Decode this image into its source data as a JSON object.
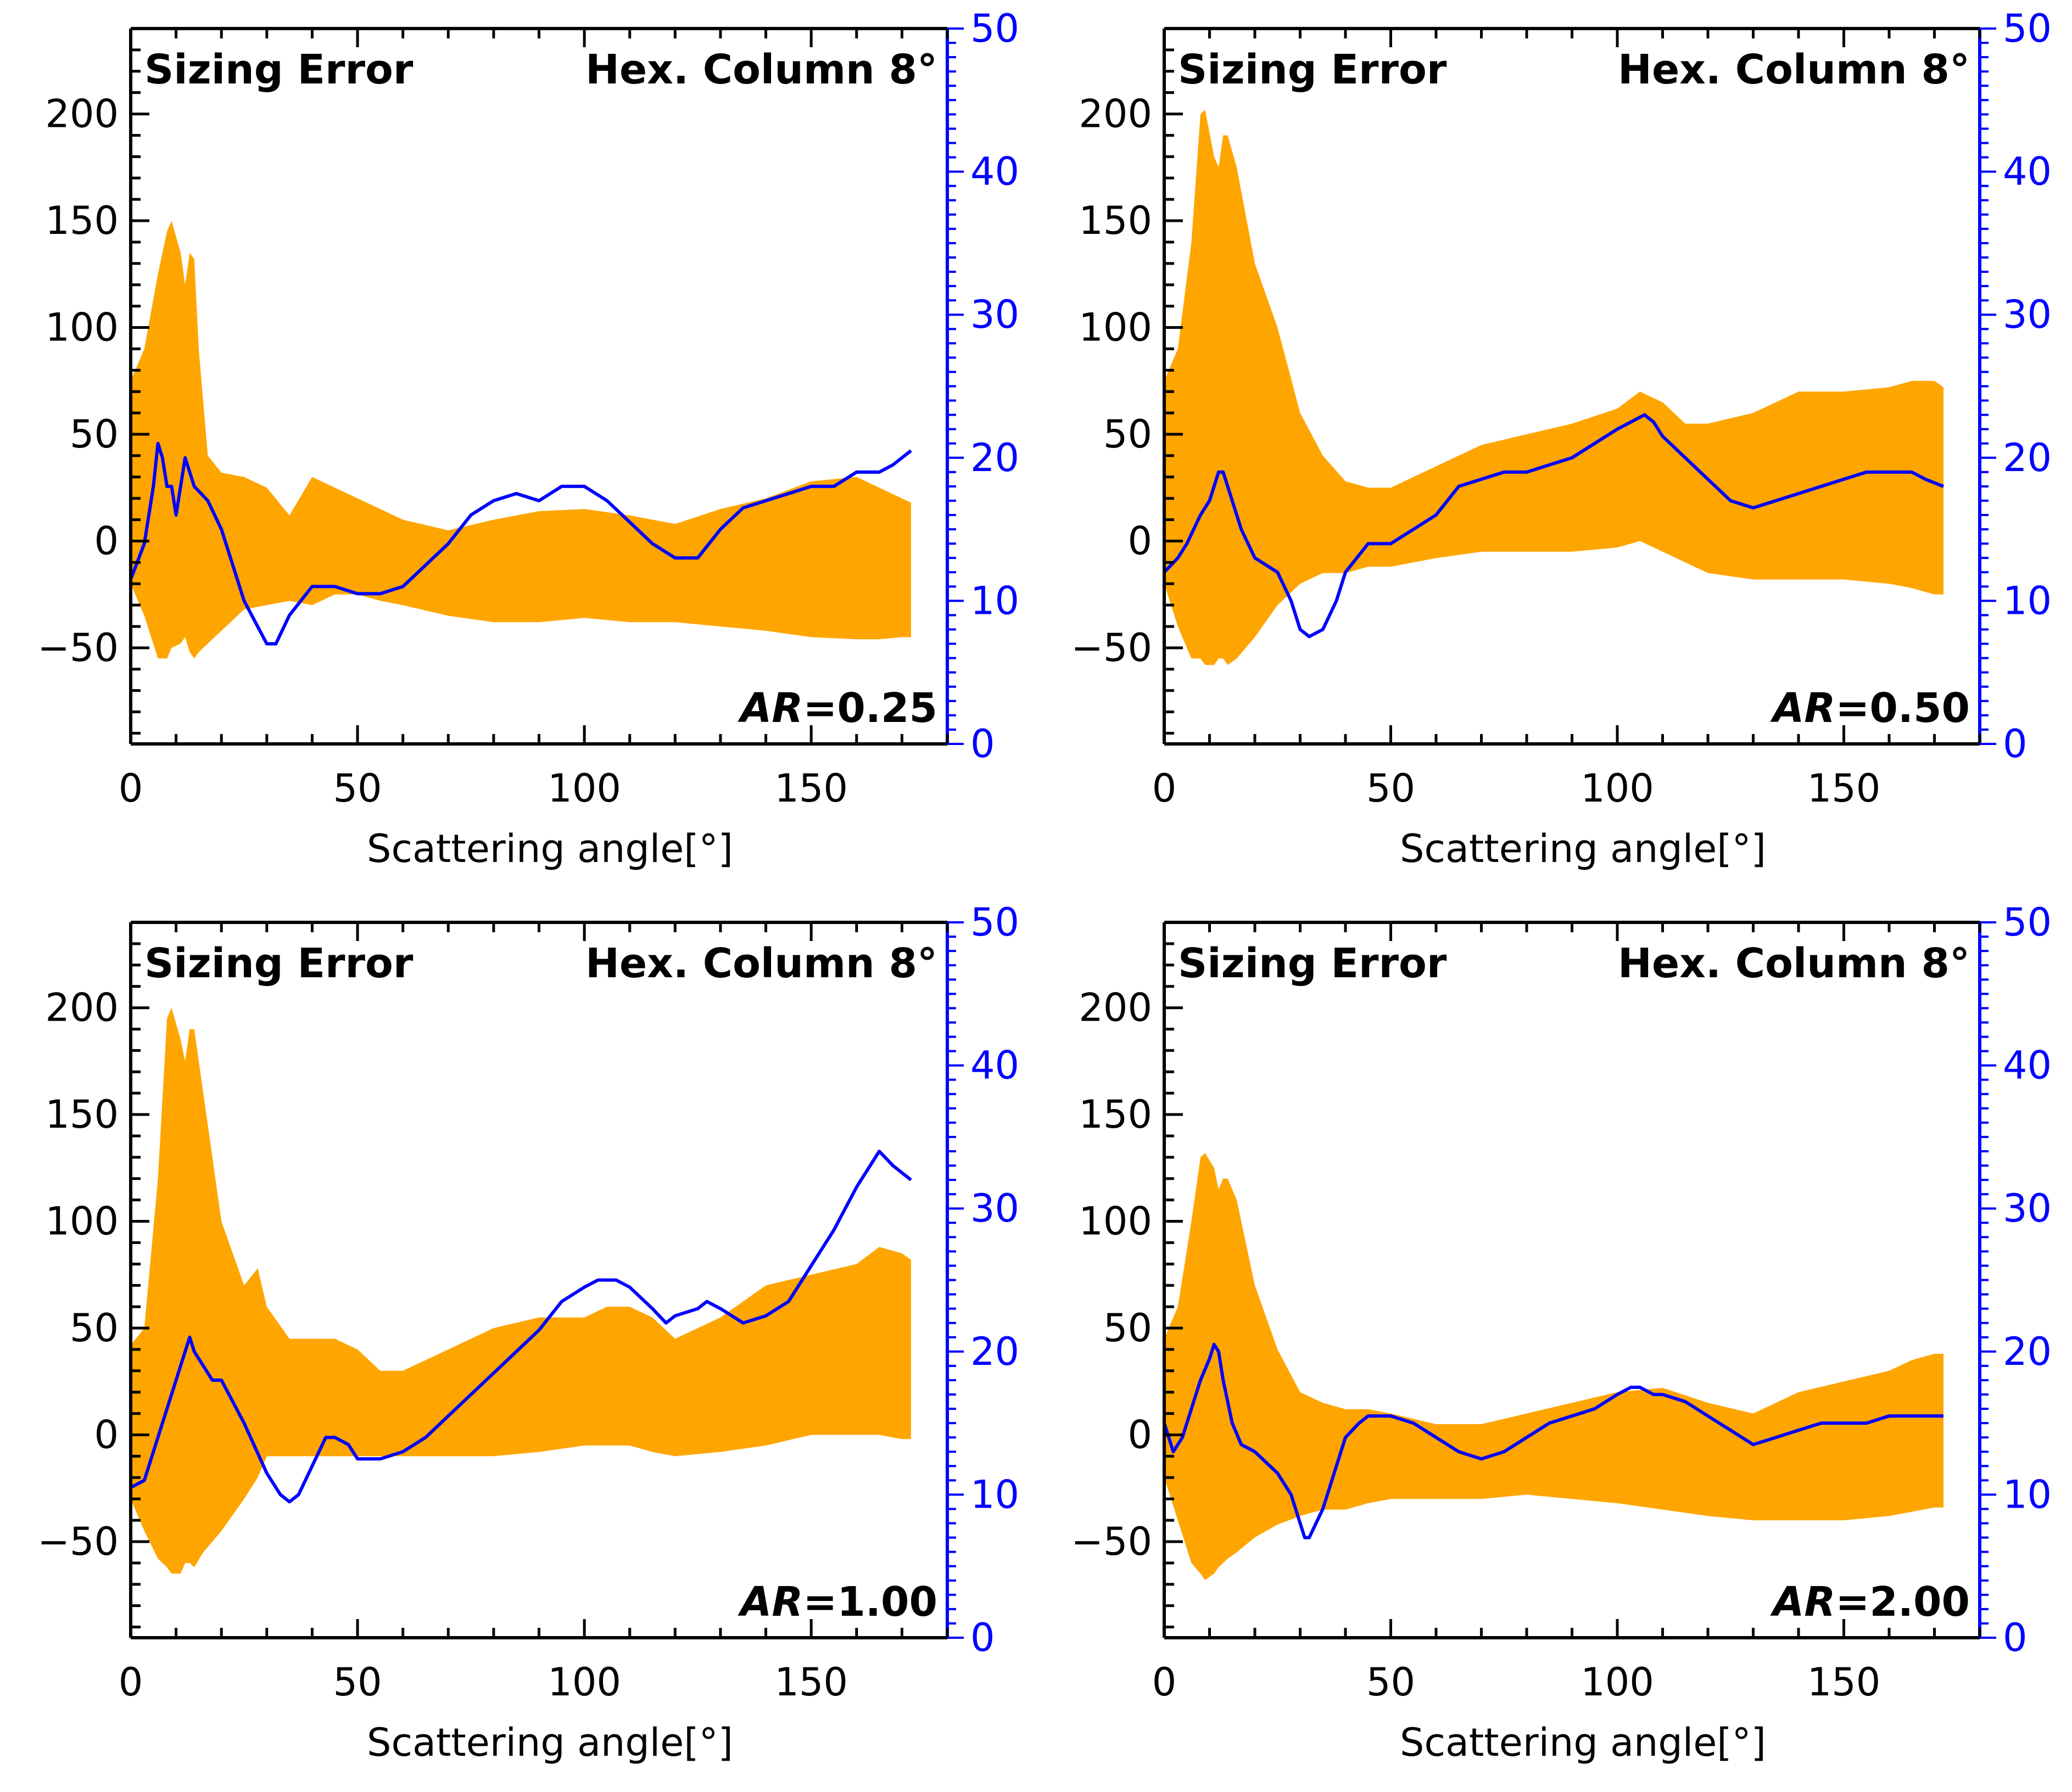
{
  "colors": {
    "band": "#FFA500",
    "line": "#0000FF",
    "axis": "#000000",
    "right_axis": "#0000FF"
  },
  "chart_data": [
    {
      "type": "area",
      "title": "Sizing Error",
      "subtitle": "Hex. Column 8°",
      "annotation_label": "AR",
      "annotation_value": "=0.25",
      "xlabel": "Scattering angle[°]",
      "xlim": [
        0,
        180
      ],
      "xticks": [
        "0",
        "50",
        "100",
        "150"
      ],
      "ylim": [
        -95,
        240
      ],
      "yticks": [
        "−50",
        "0",
        "50",
        "100",
        "150",
        "200"
      ],
      "y2lim": [
        0,
        50
      ],
      "y2ticks": [
        "0",
        "10",
        "20",
        "30",
        "40",
        "50"
      ],
      "band": {
        "x": [
          0,
          3,
          6,
          8,
          9,
          11,
          12,
          13,
          14,
          15,
          17,
          20,
          25,
          30,
          35,
          40,
          45,
          50,
          55,
          60,
          70,
          80,
          90,
          100,
          110,
          120,
          130,
          140,
          150,
          160,
          165,
          170,
          172
        ],
        "upper": [
          75,
          90,
          125,
          145,
          150,
          135,
          120,
          135,
          132,
          90,
          40,
          32,
          30,
          25,
          12,
          30,
          25,
          20,
          15,
          10,
          5,
          10,
          14,
          15,
          12,
          8,
          15,
          20,
          28,
          30,
          25,
          20,
          18
        ],
        "lower": [
          -20,
          -35,
          -55,
          -55,
          -50,
          -48,
          -45,
          -52,
          -55,
          -52,
          -48,
          -42,
          -32,
          -30,
          -28,
          -30,
          -25,
          -25,
          -28,
          -30,
          -35,
          -38,
          -38,
          -36,
          -38,
          -38,
          -40,
          -42,
          -45,
          -46,
          -46,
          -45,
          -45
        ]
      },
      "line": {
        "x": [
          0,
          3,
          5,
          6,
          7,
          8,
          9,
          10,
          12,
          14,
          17,
          20,
          25,
          30,
          32,
          35,
          40,
          45,
          50,
          55,
          60,
          65,
          70,
          75,
          80,
          85,
          90,
          95,
          100,
          105,
          110,
          115,
          120,
          125,
          130,
          135,
          140,
          145,
          150,
          155,
          160,
          165,
          168,
          172
        ],
        "y": [
          11.5,
          14,
          18,
          21,
          20,
          18,
          18,
          16,
          20,
          18,
          17,
          15,
          10,
          7,
          7,
          9,
          11,
          11,
          10.5,
          10.5,
          11,
          12.5,
          14,
          16,
          17,
          17.5,
          17,
          18,
          18,
          17,
          15.5,
          14,
          13,
          13,
          15,
          16.5,
          17,
          17.5,
          18,
          18,
          19,
          19,
          19.5,
          20.5
        ]
      }
    },
    {
      "type": "area",
      "title": "Sizing Error",
      "subtitle": "Hex. Column 8°",
      "annotation_label": "AR",
      "annotation_value": "=0.50",
      "xlabel": "Scattering angle[°]",
      "xlim": [
        0,
        180
      ],
      "xticks": [
        "0",
        "50",
        "100",
        "150"
      ],
      "ylim": [
        -95,
        240
      ],
      "yticks": [
        "−50",
        "0",
        "50",
        "100",
        "150",
        "200"
      ],
      "y2lim": [
        0,
        50
      ],
      "y2ticks": [
        "0",
        "10",
        "20",
        "30",
        "40",
        "50"
      ],
      "band": {
        "x": [
          0,
          3,
          6,
          8,
          9,
          11,
          12,
          13,
          14,
          16,
          20,
          25,
          30,
          35,
          40,
          45,
          50,
          55,
          60,
          70,
          80,
          90,
          100,
          105,
          110,
          115,
          120,
          130,
          140,
          150,
          160,
          165,
          170,
          172
        ],
        "upper": [
          75,
          90,
          140,
          200,
          202,
          180,
          175,
          190,
          190,
          175,
          130,
          100,
          60,
          40,
          28,
          25,
          25,
          30,
          35,
          45,
          50,
          55,
          62,
          70,
          65,
          55,
          55,
          60,
          70,
          70,
          72,
          75,
          75,
          72
        ],
        "lower": [
          -20,
          -40,
          -55,
          -55,
          -58,
          -58,
          -55,
          -55,
          -58,
          -55,
          -45,
          -30,
          -20,
          -15,
          -15,
          -12,
          -12,
          -10,
          -8,
          -5,
          -5,
          -5,
          -3,
          0,
          -5,
          -10,
          -15,
          -18,
          -18,
          -18,
          -20,
          -22,
          -25,
          -25
        ]
      },
      "line": {
        "x": [
          0,
          3,
          5,
          8,
          10,
          12,
          13,
          15,
          17,
          20,
          25,
          28,
          30,
          32,
          35,
          38,
          40,
          45,
          50,
          55,
          60,
          65,
          70,
          75,
          80,
          85,
          90,
          95,
          100,
          103,
          106,
          108,
          110,
          115,
          120,
          125,
          130,
          135,
          140,
          145,
          150,
          155,
          160,
          165,
          168,
          172
        ],
        "y": [
          12,
          13,
          14,
          16,
          17,
          19,
          19,
          17,
          15,
          13,
          12,
          10,
          8,
          7.5,
          8,
          10,
          12,
          14,
          14,
          15,
          16,
          18,
          18.5,
          19,
          19,
          19.5,
          20,
          21,
          22,
          22.5,
          23,
          22.5,
          21.5,
          20,
          18.5,
          17,
          16.5,
          17,
          17.5,
          18,
          18.5,
          19,
          19,
          19,
          18.5,
          18
        ]
      }
    },
    {
      "type": "area",
      "title": "Sizing Error",
      "subtitle": "Hex. Column 8°",
      "annotation_label": "AR",
      "annotation_value": "=1.00",
      "xlabel": "Scattering angle[°]",
      "xlim": [
        0,
        180
      ],
      "xticks": [
        "0",
        "50",
        "100",
        "150"
      ],
      "ylim": [
        -95,
        240
      ],
      "yticks": [
        "−50",
        "0",
        "50",
        "100",
        "150",
        "200"
      ],
      "y2lim": [
        0,
        50
      ],
      "y2ticks": [
        "0",
        "10",
        "20",
        "30",
        "40",
        "50"
      ],
      "band": {
        "x": [
          0,
          3,
          6,
          8,
          9,
          11,
          12,
          13,
          14,
          16,
          20,
          25,
          28,
          30,
          35,
          40,
          45,
          50,
          55,
          60,
          70,
          80,
          90,
          100,
          105,
          110,
          115,
          120,
          130,
          140,
          150,
          160,
          165,
          170,
          172
        ],
        "upper": [
          42,
          50,
          120,
          195,
          200,
          185,
          175,
          190,
          190,
          160,
          100,
          70,
          78,
          60,
          45,
          45,
          45,
          40,
          30,
          30,
          40,
          50,
          55,
          55,
          60,
          60,
          55,
          45,
          55,
          70,
          75,
          80,
          88,
          85,
          82
        ],
        "lower": [
          -30,
          -45,
          -58,
          -62,
          -65,
          -65,
          -60,
          -60,
          -62,
          -55,
          -45,
          -30,
          -20,
          -10,
          -10,
          -10,
          -10,
          -10,
          -10,
          -10,
          -10,
          -10,
          -8,
          -5,
          -5,
          -5,
          -8,
          -10,
          -8,
          -5,
          0,
          0,
          0,
          -2,
          -2
        ]
      },
      "line": {
        "x": [
          0,
          3,
          5,
          7,
          10,
          12,
          13,
          14,
          16,
          18,
          20,
          25,
          30,
          33,
          35,
          37,
          40,
          43,
          45,
          48,
          50,
          53,
          55,
          60,
          65,
          70,
          75,
          80,
          85,
          90,
          95,
          100,
          103,
          105,
          107,
          110,
          115,
          118,
          120,
          125,
          127,
          130,
          135,
          140,
          145,
          150,
          155,
          160,
          163,
          165,
          168,
          170,
          172
        ],
        "y": [
          10.5,
          11,
          13,
          15,
          18,
          20,
          21,
          20,
          19,
          18,
          18,
          15,
          11.5,
          10,
          9.5,
          10,
          12,
          14,
          14,
          13.5,
          12.5,
          12.5,
          12.5,
          13,
          14,
          15.5,
          17,
          18.5,
          20,
          21.5,
          23.5,
          24.5,
          25,
          25,
          25,
          24.5,
          23,
          22,
          22.5,
          23,
          23.5,
          23,
          22,
          22.5,
          23.5,
          26,
          28.5,
          31.5,
          33,
          34,
          33,
          32.5,
          32
        ]
      }
    },
    {
      "type": "area",
      "title": "Sizing Error",
      "subtitle": "Hex. Column 8°",
      "annotation_label": "AR",
      "annotation_value": "=2.00",
      "xlabel": "Scattering angle[°]",
      "xlim": [
        0,
        180
      ],
      "xticks": [
        "0",
        "50",
        "100",
        "150"
      ],
      "ylim": [
        -95,
        240
      ],
      "yticks": [
        "−50",
        "0",
        "50",
        "100",
        "150",
        "200"
      ],
      "y2lim": [
        0,
        50
      ],
      "y2ticks": [
        "0",
        "10",
        "20",
        "30",
        "40",
        "50"
      ],
      "band": {
        "x": [
          0,
          3,
          6,
          8,
          9,
          11,
          12,
          13,
          14,
          16,
          20,
          25,
          30,
          35,
          40,
          45,
          50,
          60,
          70,
          80,
          90,
          100,
          110,
          120,
          130,
          140,
          150,
          160,
          165,
          170,
          172
        ],
        "upper": [
          45,
          60,
          100,
          130,
          132,
          125,
          115,
          120,
          120,
          110,
          70,
          40,
          20,
          15,
          12,
          12,
          10,
          5,
          5,
          10,
          15,
          20,
          22,
          15,
          10,
          20,
          25,
          30,
          35,
          38,
          38
        ],
        "lower": [
          -20,
          -40,
          -60,
          -65,
          -68,
          -65,
          -62,
          -60,
          -58,
          -55,
          -48,
          -42,
          -38,
          -35,
          -35,
          -32,
          -30,
          -30,
          -30,
          -28,
          -30,
          -32,
          -35,
          -38,
          -40,
          -40,
          -40,
          -38,
          -36,
          -34,
          -34
        ]
      },
      "line": {
        "x": [
          0,
          2,
          4,
          6,
          8,
          10,
          11,
          12,
          13,
          15,
          17,
          20,
          25,
          28,
          30,
          31,
          32,
          35,
          38,
          40,
          43,
          45,
          50,
          55,
          60,
          65,
          70,
          75,
          80,
          85,
          90,
          95,
          100,
          103,
          105,
          108,
          110,
          115,
          120,
          125,
          130,
          135,
          140,
          145,
          150,
          155,
          160,
          165,
          170,
          172
        ],
        "y": [
          15,
          13,
          14,
          16,
          18,
          19.5,
          20.5,
          20,
          18,
          15,
          13.5,
          13,
          11.5,
          10,
          8,
          7,
          7,
          9,
          12,
          14,
          15,
          15.5,
          15.5,
          15,
          14,
          13,
          12.5,
          13,
          14,
          15,
          15.5,
          16,
          17,
          17.5,
          17.5,
          17,
          17,
          16.5,
          15.5,
          14.5,
          13.5,
          14,
          14.5,
          15,
          15,
          15,
          15.5,
          15.5,
          15.5,
          15.5
        ]
      }
    }
  ]
}
